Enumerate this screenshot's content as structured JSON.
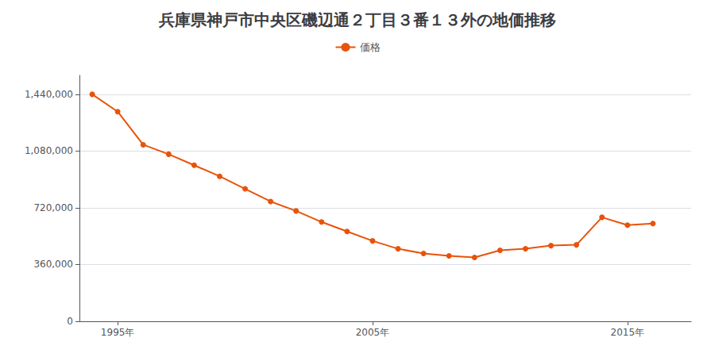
{
  "chart_data": {
    "type": "line",
    "title": "兵庫県神戸市中央区磯辺通２丁目３番１３外の地価推移",
    "x": [
      1994,
      1995,
      1996,
      1997,
      1998,
      1999,
      2000,
      2001,
      2002,
      2003,
      2004,
      2005,
      2006,
      2007,
      2008,
      2009,
      2010,
      2011,
      2012,
      2013,
      2014,
      2015,
      2016
    ],
    "series": [
      {
        "name": "価格",
        "color": "#e8530a",
        "marker": "circle",
        "values": [
          1440000,
          1330000,
          1120000,
          1060000,
          990000,
          920000,
          840000,
          760000,
          700000,
          630000,
          570000,
          510000,
          460000,
          430000,
          415000,
          405000,
          450000,
          460000,
          480000,
          485000,
          660000,
          610000,
          620000
        ]
      }
    ],
    "xlim": [
      1993.5,
      2017.5
    ],
    "xticks": [
      {
        "value": 1995,
        "label": "1995年"
      },
      {
        "value": 2005,
        "label": "2005年"
      },
      {
        "value": 2015,
        "label": "2015年"
      }
    ],
    "ylim": [
      0,
      1560000
    ],
    "yticks": [
      0,
      {
        "value": 360000,
        "label": "360,000"
      },
      {
        "value": 720000,
        "label": "720,000"
      },
      {
        "value": 1080000,
        "label": "1,080,000"
      },
      {
        "value": 1440000,
        "label": "1,440,000"
      }
    ],
    "grid": "y",
    "legend": "top"
  }
}
